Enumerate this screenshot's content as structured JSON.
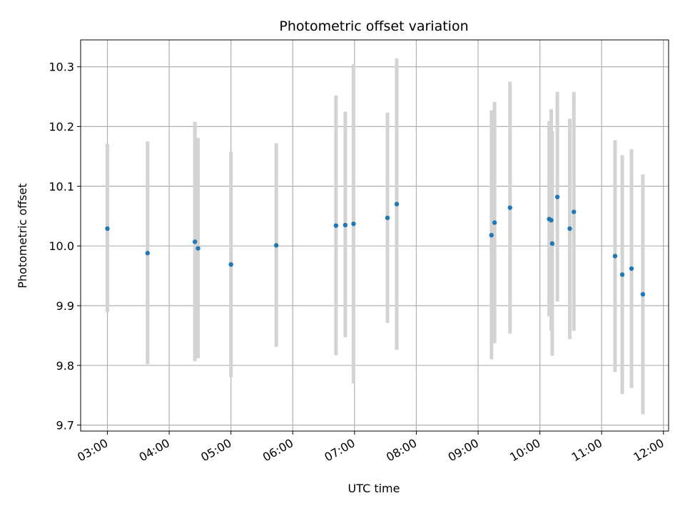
{
  "chart_data": {
    "type": "scatter",
    "title": "Photometric offset variation",
    "xlabel": "UTC time",
    "ylabel": "Photometric offset",
    "x_unit": "UTC time of day",
    "xlim": [
      "02:34",
      "12:05"
    ],
    "ylim": [
      9.69,
      10.345
    ],
    "grid": true,
    "x_ticks": [
      "03:00",
      "04:00",
      "05:00",
      "06:00",
      "07:00",
      "08:00",
      "09:00",
      "10:00",
      "11:00",
      "12:00"
    ],
    "y_ticks": [
      9.7,
      9.8,
      9.9,
      10.0,
      10.1,
      10.2,
      10.3
    ],
    "y_tick_labels": [
      "9.7",
      "9.8",
      "9.9",
      "10.0",
      "10.1",
      "10.2",
      "10.3"
    ],
    "colors": {
      "point": "#1f77b4",
      "errorbar": "#d3d3d3",
      "grid": "#b0b0b0"
    },
    "points": [
      {
        "x": "03:00",
        "y": 10.029,
        "lo": 9.889,
        "hi": 10.171
      },
      {
        "x": "03:39",
        "y": 9.988,
        "lo": 9.802,
        "hi": 10.175
      },
      {
        "x": "04:25",
        "y": 10.007,
        "lo": 9.807,
        "hi": 10.208
      },
      {
        "x": "04:28",
        "y": 9.996,
        "lo": 9.812,
        "hi": 10.181
      },
      {
        "x": "05:00",
        "y": 9.969,
        "lo": 9.78,
        "hi": 10.158
      },
      {
        "x": "05:44",
        "y": 10.001,
        "lo": 9.831,
        "hi": 10.172
      },
      {
        "x": "06:42",
        "y": 10.034,
        "lo": 9.817,
        "hi": 10.252
      },
      {
        "x": "06:51",
        "y": 10.035,
        "lo": 9.847,
        "hi": 10.225
      },
      {
        "x": "06:59",
        "y": 10.037,
        "lo": 9.77,
        "hi": 10.304
      },
      {
        "x": "07:32",
        "y": 10.047,
        "lo": 9.871,
        "hi": 10.223
      },
      {
        "x": "07:41",
        "y": 10.07,
        "lo": 9.826,
        "hi": 10.314
      },
      {
        "x": "09:13",
        "y": 10.018,
        "lo": 9.81,
        "hi": 10.227
      },
      {
        "x": "09:16",
        "y": 10.039,
        "lo": 9.837,
        "hi": 10.241
      },
      {
        "x": "09:31",
        "y": 10.064,
        "lo": 9.853,
        "hi": 10.275
      },
      {
        "x": "10:09",
        "y": 10.045,
        "lo": 9.882,
        "hi": 10.209
      },
      {
        "x": "10:11",
        "y": 10.043,
        "lo": 9.858,
        "hi": 10.229
      },
      {
        "x": "10:12",
        "y": 10.004,
        "lo": 9.816,
        "hi": 10.192
      },
      {
        "x": "10:17",
        "y": 10.082,
        "lo": 9.907,
        "hi": 10.258
      },
      {
        "x": "10:29",
        "y": 10.029,
        "lo": 9.844,
        "hi": 10.213
      },
      {
        "x": "10:33",
        "y": 10.057,
        "lo": 9.858,
        "hi": 10.258
      },
      {
        "x": "11:13",
        "y": 9.983,
        "lo": 9.789,
        "hi": 10.177
      },
      {
        "x": "11:20",
        "y": 9.952,
        "lo": 9.752,
        "hi": 10.152
      },
      {
        "x": "11:29",
        "y": 9.962,
        "lo": 9.762,
        "hi": 10.162
      },
      {
        "x": "11:40",
        "y": 9.919,
        "lo": 9.718,
        "hi": 10.12
      }
    ]
  }
}
